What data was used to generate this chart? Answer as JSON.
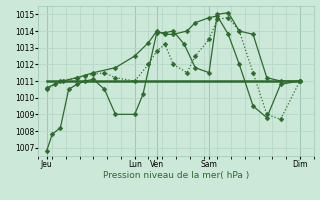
{
  "bg_color": "#cce8d8",
  "grid_color_minor": "#b8d8c8",
  "grid_color_major": "#a0c8b8",
  "line_color": "#2d6a2d",
  "title": "Pression niveau de la mer( hPa )",
  "ylabel_vals": [
    1007,
    1008,
    1009,
    1010,
    1011,
    1012,
    1013,
    1014,
    1015
  ],
  "ylim": [
    1006.5,
    1015.5
  ],
  "xlim": [
    0,
    100
  ],
  "xtick_pos": [
    3,
    35,
    43,
    62,
    95
  ],
  "xtick_labels": [
    "Jeu",
    "Lun",
    "Ven",
    "Sam",
    "Dim"
  ],
  "series1_x": [
    3,
    5,
    8,
    11,
    14,
    17,
    20,
    24,
    28,
    35,
    38,
    43,
    46,
    49,
    53,
    57,
    62,
    65,
    69,
    73,
    78,
    83,
    88,
    95
  ],
  "series1_y": [
    1006.8,
    1007.8,
    1008.2,
    1010.5,
    1010.8,
    1011.0,
    1011.1,
    1010.5,
    1009.0,
    1009.0,
    1010.2,
    1013.9,
    1013.9,
    1014.0,
    1013.2,
    1011.8,
    1011.5,
    1015.0,
    1015.1,
    1014.0,
    1013.8,
    1011.2,
    1011.0,
    1011.0
  ],
  "series2_x": [
    3,
    8,
    14,
    17,
    20,
    24,
    28,
    35,
    40,
    43,
    46,
    49,
    54,
    57,
    62,
    65,
    69,
    73,
    78,
    83,
    88,
    95
  ],
  "series2_y": [
    1010.5,
    1011.0,
    1011.2,
    1011.3,
    1011.4,
    1011.5,
    1011.2,
    1011.0,
    1012.0,
    1012.8,
    1013.2,
    1012.0,
    1011.5,
    1012.5,
    1013.5,
    1014.7,
    1014.8,
    1014.0,
    1011.5,
    1009.0,
    1008.7,
    1011.0
  ],
  "series3_x": [
    3,
    95
  ],
  "series3_y": [
    1011.0,
    1011.0
  ],
  "series4_x": [
    3,
    6,
    9,
    14,
    20,
    28,
    35,
    40,
    43,
    46,
    49,
    54,
    57,
    62,
    65,
    69,
    73,
    78,
    83,
    88,
    95
  ],
  "series4_y": [
    1010.6,
    1010.8,
    1011.0,
    1011.2,
    1011.5,
    1011.8,
    1012.5,
    1013.3,
    1014.0,
    1013.8,
    1013.8,
    1014.0,
    1014.5,
    1014.8,
    1014.9,
    1013.8,
    1012.0,
    1009.5,
    1008.8,
    1010.8,
    1011.0
  ]
}
